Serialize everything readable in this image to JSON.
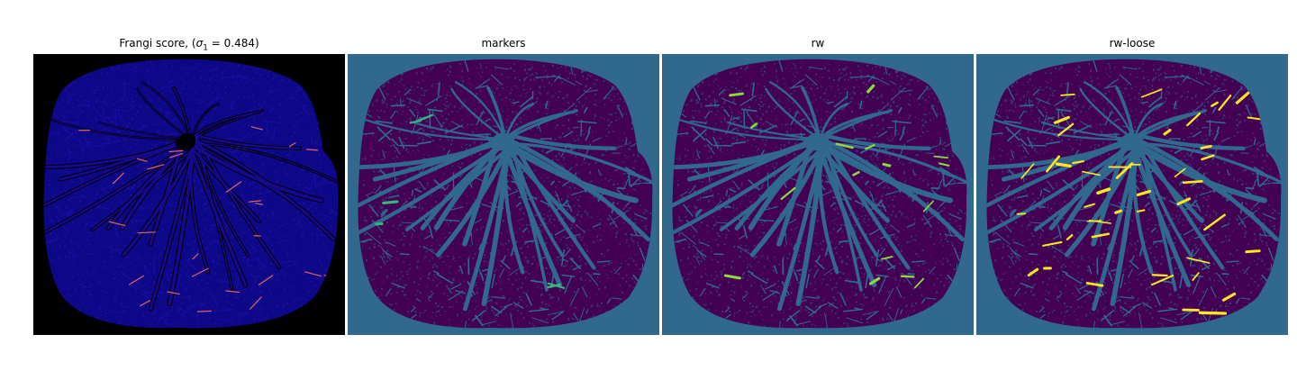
{
  "panels": [
    {
      "id": "frangi",
      "title_prefix": "Frangi score, (",
      "title_sigma": "σ",
      "title_subscript": "1",
      "title_suffix": " = 0.484)",
      "background": "#000000",
      "blob_color": "#0d0887",
      "vessel_color": "#000000",
      "highlight_color": "#e16462"
    },
    {
      "id": "markers",
      "title": "markers",
      "background": "#30688e",
      "blob_color": "#440154",
      "vessel_color": "#30688e",
      "highlight_color": "#35b779"
    },
    {
      "id": "rw",
      "title": "rw",
      "background": "#30688e",
      "blob_color": "#440154",
      "vessel_color": "#30688e",
      "highlight_color": "#8fd744"
    },
    {
      "id": "rw-loose",
      "title": "rw-loose",
      "background": "#30688e",
      "blob_color": "#440154",
      "vessel_color": "#30688e",
      "highlight_color": "#fde725"
    }
  ]
}
